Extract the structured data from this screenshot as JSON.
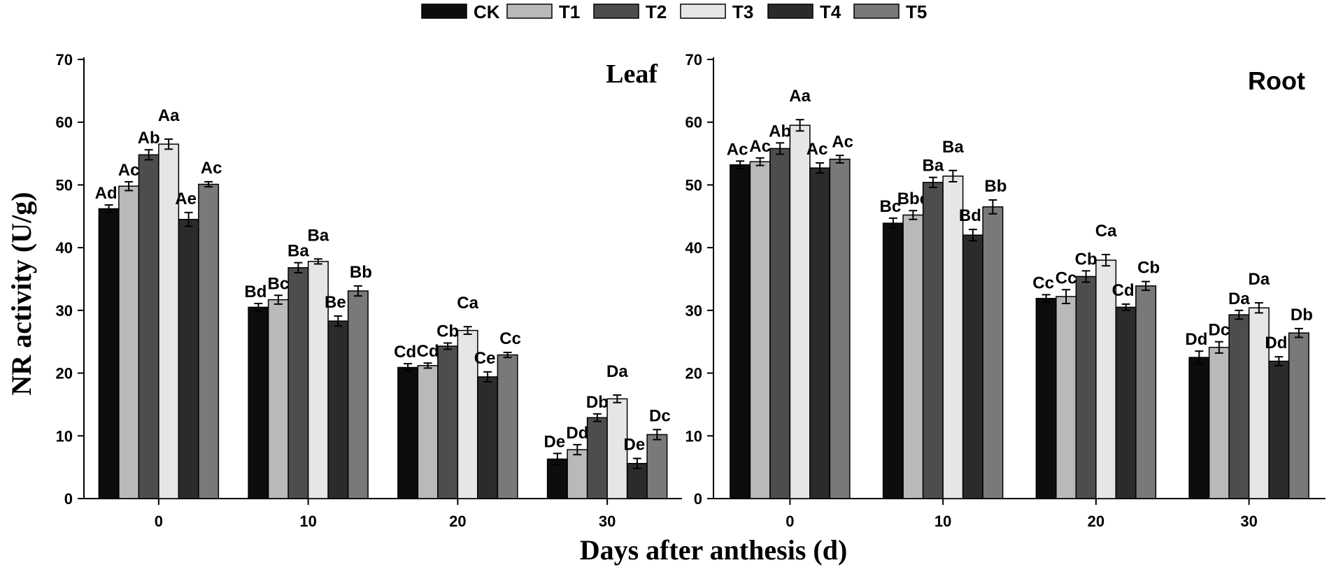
{
  "chart_data": {
    "type": "bar",
    "xlabel": "Days after anthesis (d)",
    "ylabel": "NR activity (U/g)",
    "categories": [
      "0",
      "10",
      "20",
      "30"
    ],
    "ylim": [
      0,
      70
    ],
    "yticks": [
      "0",
      "10",
      "20",
      "30",
      "40",
      "50",
      "60",
      "70"
    ],
    "series_names": [
      "CK",
      "T1",
      "T2",
      "T3",
      "T4",
      "T5"
    ],
    "series_colors": [
      "#0d0d0d",
      "#b9b9b9",
      "#4d4d4d",
      "#e6e6e6",
      "#2b2b2b",
      "#797979"
    ],
    "legend_position": "top-center",
    "panels": [
      {
        "title": "Leaf",
        "series": [
          {
            "name": "CK",
            "values": [
              46.2,
              30.5,
              20.9,
              6.3
            ],
            "errors": [
              0.6,
              0.6,
              0.6,
              0.9
            ],
            "labels": [
              "Ad",
              "Bd",
              "Cd",
              "De"
            ]
          },
          {
            "name": "T1",
            "values": [
              49.8,
              31.7,
              21.2,
              7.8
            ],
            "errors": [
              0.7,
              0.7,
              0.4,
              0.8
            ],
            "labels": [
              "Ac",
              "Bc",
              "Cd",
              "Dd"
            ]
          },
          {
            "name": "T2",
            "values": [
              54.8,
              36.8,
              24.3,
              12.9
            ],
            "errors": [
              0.8,
              0.8,
              0.5,
              0.6
            ],
            "labels": [
              "Ab",
              "Ba",
              "Cb",
              "Db"
            ]
          },
          {
            "name": "T3",
            "values": [
              56.5,
              37.8,
              26.8,
              15.9
            ],
            "errors": [
              0.8,
              0.4,
              0.6,
              0.6
            ],
            "labels": [
              "Aa",
              "Ba",
              "Ca",
              "Da"
            ]
          },
          {
            "name": "T4",
            "values": [
              44.5,
              28.3,
              19.4,
              5.6
            ],
            "errors": [
              1.1,
              0.8,
              0.8,
              0.8
            ],
            "labels": [
              "Ae",
              "Be",
              "Ce",
              "De"
            ]
          },
          {
            "name": "T5",
            "values": [
              50.1,
              33.1,
              22.9,
              10.2
            ],
            "errors": [
              0.4,
              0.8,
              0.4,
              0.8
            ],
            "labels": [
              "Ac",
              "Bb",
              "Cc",
              "Dc"
            ]
          }
        ]
      },
      {
        "title": "Root",
        "series": [
          {
            "name": "CK",
            "values": [
              53.2,
              43.9,
              31.9,
              22.5
            ],
            "errors": [
              0.6,
              0.8,
              0.6,
              1.0
            ],
            "labels": [
              "Ac",
              "Bc",
              "Cc",
              "Dd"
            ]
          },
          {
            "name": "T1",
            "values": [
              53.7,
              45.2,
              32.2,
              24.1
            ],
            "errors": [
              0.6,
              0.7,
              1.1,
              0.9
            ],
            "labels": [
              "Ac",
              "Bbc",
              "Cc",
              "Dc"
            ]
          },
          {
            "name": "T2",
            "values": [
              55.8,
              50.4,
              35.4,
              29.3
            ],
            "errors": [
              0.9,
              0.8,
              0.9,
              0.7
            ],
            "labels": [
              "Ab",
              "Ba",
              "Cb",
              "Da"
            ]
          },
          {
            "name": "T3",
            "values": [
              59.5,
              51.4,
              38.0,
              30.4
            ],
            "errors": [
              0.9,
              0.9,
              0.9,
              0.8
            ],
            "labels": [
              "Aa",
              "Ba",
              "Ca",
              "Da"
            ]
          },
          {
            "name": "T4",
            "values": [
              52.7,
              42.0,
              30.5,
              21.9
            ],
            "errors": [
              0.8,
              0.9,
              0.5,
              0.7
            ],
            "labels": [
              "Ac",
              "Bd",
              "Cd",
              "Dd"
            ]
          },
          {
            "name": "T5",
            "values": [
              54.1,
              46.5,
              33.9,
              26.4
            ],
            "errors": [
              0.6,
              1.1,
              0.7,
              0.7
            ],
            "labels": [
              "Ac",
              "Bb",
              "Cb",
              "Db"
            ]
          }
        ]
      }
    ]
  }
}
